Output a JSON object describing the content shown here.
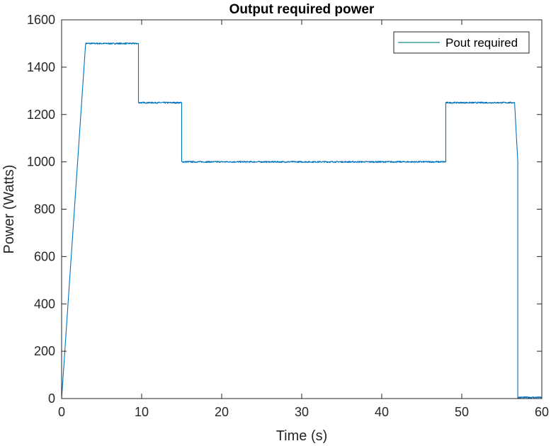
{
  "chart_data": {
    "type": "line",
    "title": "Output required power",
    "xlabel": "Time (s)",
    "ylabel": "Power (Watts)",
    "xlim": [
      0,
      60
    ],
    "ylim": [
      0,
      1600
    ],
    "xticks": [
      0,
      10,
      20,
      30,
      40,
      50,
      60
    ],
    "yticks": [
      0,
      200,
      400,
      600,
      800,
      1000,
      1200,
      1400,
      1600
    ],
    "xtick_labels": [
      "0",
      "10",
      "20",
      "30",
      "40",
      "50",
      "60"
    ],
    "ytick_labels": [
      "0",
      "200",
      "400",
      "600",
      "800",
      "1000",
      "1200",
      "1400",
      "1600"
    ],
    "grid": false,
    "legend_position": "top-right",
    "series": [
      {
        "name": "Pout required",
        "color": "#0072BD",
        "legend_color": "#1a8a8a",
        "noise_amplitude": 3,
        "x": [
          0,
          3,
          9.6,
          9.6,
          15,
          15,
          48,
          48,
          56.6,
          57,
          57,
          60
        ],
        "y": [
          0,
          1500,
          1500,
          1250,
          1250,
          1000,
          1000,
          1250,
          1250,
          1000,
          5,
          5
        ]
      }
    ]
  }
}
